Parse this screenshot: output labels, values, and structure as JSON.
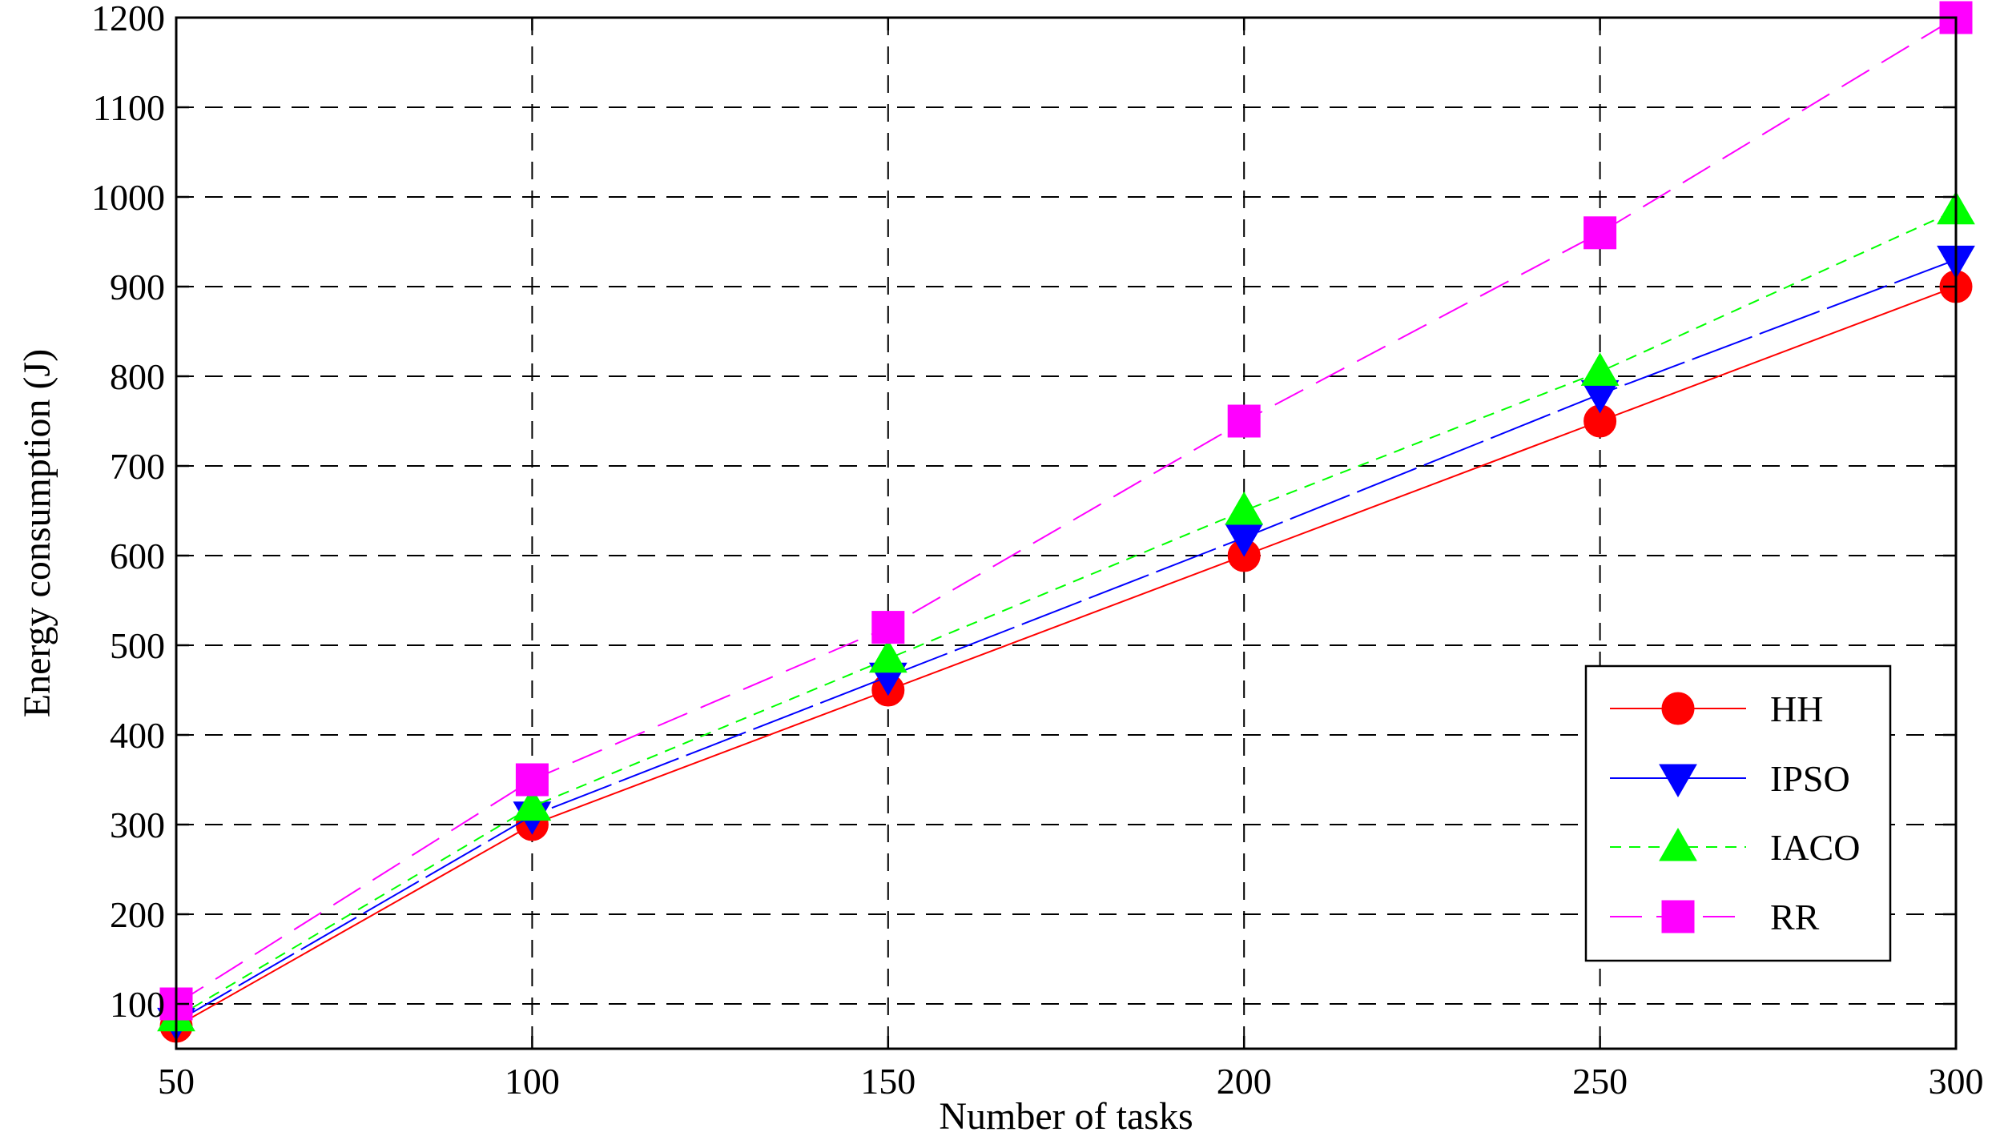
{
  "chart_data": {
    "type": "line",
    "title": "",
    "xlabel": "Number of tasks",
    "ylabel": "Energy consumption (J)",
    "x": [
      50,
      100,
      150,
      200,
      250,
      300
    ],
    "xlim": [
      50,
      300
    ],
    "ylim": [
      50,
      1200
    ],
    "xticks": [
      "50",
      "100",
      "150",
      "200",
      "250",
      "300"
    ],
    "yticks": [
      "100",
      "200",
      "300",
      "400",
      "500",
      "600",
      "700",
      "800",
      "900",
      "1000",
      "1100",
      "1200"
    ],
    "grid": true,
    "legend_position": "bottom-right",
    "series": [
      {
        "name": "HH",
        "values": [
          75,
          300,
          450,
          600,
          750,
          900
        ],
        "color": "#ff0000",
        "marker": "circle",
        "dash": ""
      },
      {
        "name": "IPSO",
        "values": [
          80,
          310,
          465,
          620,
          780,
          930
        ],
        "color": "#0000ff",
        "marker": "triangle-down",
        "dash": "80,10"
      },
      {
        "name": "IACO",
        "values": [
          85,
          320,
          485,
          650,
          805,
          985
        ],
        "color": "#00ff00",
        "marker": "triangle-up",
        "dash": "14,10"
      },
      {
        "name": "RR",
        "values": [
          100,
          350,
          520,
          750,
          960,
          1200
        ],
        "color": "#ff00ff",
        "marker": "square",
        "dash": "40,18"
      }
    ]
  }
}
